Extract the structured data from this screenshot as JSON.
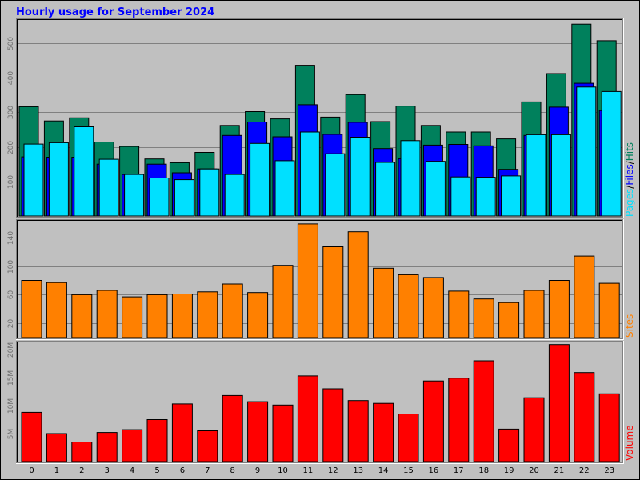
{
  "title": "Hourly usage for September 2024",
  "colors": {
    "hits": "#00805c",
    "files": "#0000ff",
    "pages": "#00e0ff",
    "sites": "#ff8000",
    "volume": "#ff0000",
    "title": "#0000ff",
    "frame_bg": "#c0c0c0"
  },
  "legend": {
    "pages": "Pages",
    "files": "Files",
    "hits": "Hits",
    "sep": "/",
    "sites": "Sites",
    "volume": "Volume"
  },
  "chart_data": [
    {
      "type": "bar",
      "name": "hits-files-pages",
      "categories": [
        "0",
        "1",
        "2",
        "3",
        "4",
        "5",
        "6",
        "7",
        "8",
        "9",
        "10",
        "11",
        "12",
        "13",
        "14",
        "15",
        "16",
        "17",
        "18",
        "19",
        "20",
        "21",
        "22",
        "23"
      ],
      "ylim": [
        0,
        560
      ],
      "yticks": [
        100,
        200,
        300,
        400,
        500
      ],
      "grid": true,
      "series": [
        {
          "name": "Hits",
          "values": [
            316,
            275,
            284,
            214,
            201,
            165,
            154,
            184,
            262,
            302,
            281,
            436,
            286,
            351,
            273,
            318,
            262,
            243,
            243,
            223,
            330,
            412,
            555,
            507
          ]
        },
        {
          "name": "Files",
          "values": [
            171,
            170,
            170,
            150,
            120,
            150,
            125,
            136,
            233,
            272,
            229,
            322,
            236,
            271,
            195,
            166,
            205,
            207,
            203,
            135,
            233,
            315,
            384,
            305
          ]
        },
        {
          "name": "Pages",
          "values": [
            208,
            212,
            258,
            164,
            120,
            110,
            105,
            136,
            120,
            210,
            160,
            243,
            180,
            228,
            155,
            218,
            158,
            113,
            112,
            116,
            235,
            235,
            373,
            360
          ]
        }
      ]
    },
    {
      "type": "bar",
      "name": "sites",
      "categories": [
        "0",
        "1",
        "2",
        "3",
        "4",
        "5",
        "6",
        "7",
        "8",
        "9",
        "10",
        "11",
        "12",
        "13",
        "14",
        "15",
        "16",
        "17",
        "18",
        "19",
        "20",
        "21",
        "22",
        "23"
      ],
      "ylim": [
        0,
        160
      ],
      "yticks": [
        20,
        60,
        100,
        140
      ],
      "grid": true,
      "series": [
        {
          "name": "Sites",
          "values": [
            80,
            77,
            60,
            66,
            57,
            60,
            61,
            64,
            75,
            63,
            101,
            159,
            127,
            148,
            97,
            88,
            84,
            65,
            54,
            49,
            66,
            80,
            114,
            76
          ]
        }
      ]
    },
    {
      "type": "bar",
      "name": "volume",
      "categories": [
        "0",
        "1",
        "2",
        "3",
        "4",
        "5",
        "6",
        "7",
        "8",
        "9",
        "10",
        "11",
        "12",
        "13",
        "14",
        "15",
        "16",
        "17",
        "18",
        "19",
        "20",
        "21",
        "22",
        "23"
      ],
      "ylim": [
        0,
        21000000
      ],
      "yticks": [
        5000000,
        10000000,
        15000000,
        20000000
      ],
      "ytick_labels": [
        "5M",
        "10M",
        "15M",
        "20M"
      ],
      "grid": true,
      "series": [
        {
          "name": "Volume",
          "values": [
            8800000,
            5000000,
            3500000,
            5200000,
            5700000,
            7500000,
            10300000,
            5500000,
            11800000,
            10700000,
            10100000,
            15300000,
            13000000,
            10900000,
            10400000,
            8500000,
            14400000,
            14900000,
            18000000,
            5800000,
            11400000,
            20900000,
            15900000,
            12100000
          ]
        }
      ]
    }
  ]
}
